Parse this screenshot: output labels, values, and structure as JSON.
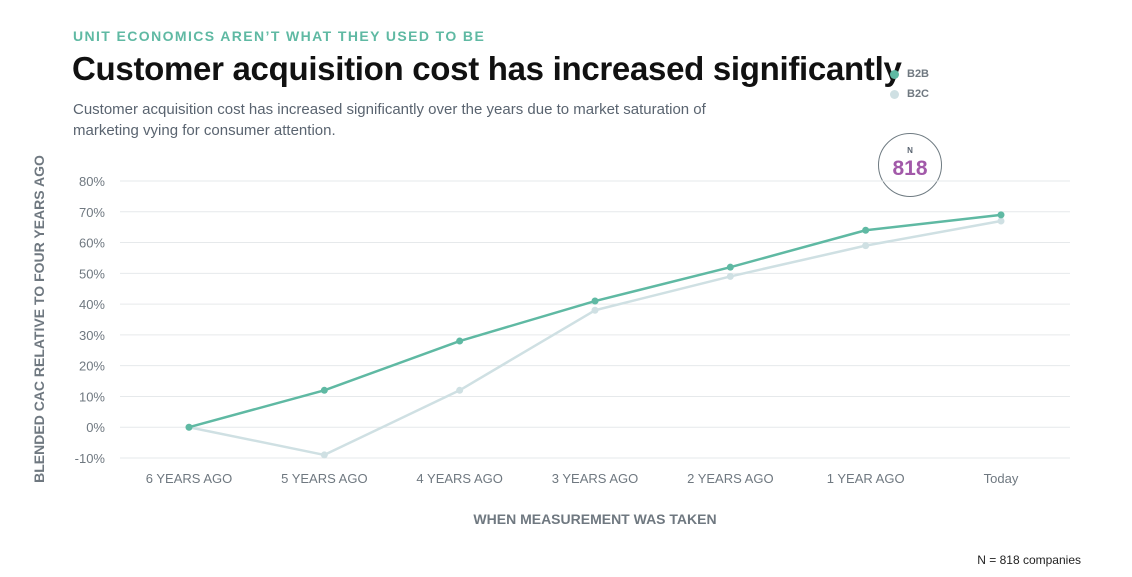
{
  "header": {
    "eyebrow": "UNIT ECONOMICS AREN’T WHAT THEY USED TO BE",
    "title": "Customer acquisition cost has increased significantly",
    "subtitle": "Customer acquisition cost has increased significantly over the years due to market saturation of marketing vying for consumer attention."
  },
  "badge": {
    "label": "N",
    "value": "818"
  },
  "footnote": "N = 818 companies",
  "colors": {
    "b2b": "#5fb9a3",
    "b2c": "#cfe0e3",
    "badge_value": "#a259a9"
  },
  "chart_data": {
    "type": "line",
    "categories": [
      "6 YEARS AGO",
      "5 YEARS AGO",
      "4 YEARS AGO",
      "3 YEARS AGO",
      "2 YEARS AGO",
      "1 YEAR AGO",
      "Today"
    ],
    "series": [
      {
        "name": "B2B",
        "values": [
          0,
          12,
          28,
          41,
          52,
          64,
          69
        ]
      },
      {
        "name": "B2C",
        "values": [
          0,
          -9,
          12,
          38,
          49,
          59,
          67
        ]
      }
    ],
    "yticks": [
      "80%",
      "70%",
      "60%",
      "50%",
      "40%",
      "30%",
      "20%",
      "10%",
      "0%",
      "-10%"
    ],
    "ylim": [
      -10,
      80
    ],
    "xlabel": "WHEN MEASUREMENT WAS TAKEN",
    "ylabel": "BLENDED CAC RELATIVE TO FOUR YEARS AGO",
    "legend_position": "top-right"
  }
}
